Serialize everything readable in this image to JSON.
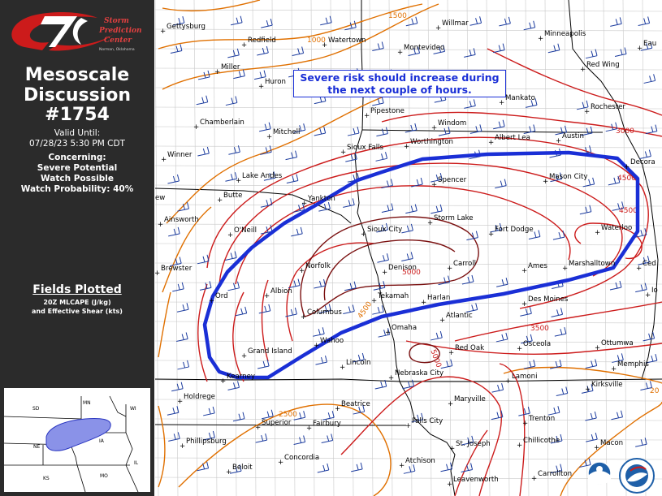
{
  "sidebar": {
    "logo_text": [
      "Storm",
      "Prediction",
      "Center"
    ],
    "logo_subtext": "Norman, Oklahoma",
    "title_line1": "Mesoscale",
    "title_line2": "Discussion",
    "number": "#1754",
    "valid_label": "Valid Until:",
    "valid_time": "07/28/23 5:30 PM CDT",
    "concerning_label": "Concerning:",
    "concerning_line1": "Severe Potential",
    "concerning_line2": "Watch Possible",
    "watch_probability": "Watch Probability: 40%",
    "fields_title": "Fields Plotted",
    "fields_line1": "20Z MLCAPE (J/kg)",
    "fields_line2": "and Effective Shear (kts)"
  },
  "inset_states": [
    "SD",
    "MN",
    "WI",
    "NE",
    "IA",
    "IL",
    "KS",
    "MO"
  ],
  "headline": {
    "line1": "Severe risk should increase during",
    "line2": "the next couple of hours."
  },
  "cities": [
    "Gettysburg",
    "Redfield",
    "Watertown",
    "Willmar",
    "Minneapolis",
    "Eau",
    "Montevideo",
    "Miller",
    "Huron",
    "Red Wing",
    "Mankato",
    "Rochester",
    "Chamberlain",
    "Pipestone",
    "Windom",
    "Mitchell",
    "Sioux Falls",
    "Worthington",
    "Albert Lea",
    "Austin",
    "Winner",
    "Decora",
    "Lake Andes",
    "Spencer",
    "Mason City",
    "Butte",
    "Yankton",
    "ew",
    "Ainsworth",
    "Storm Lake",
    "Waterloo",
    "O'Neill",
    "Sioux City",
    "Fort Dodge",
    "Brewster",
    "Norfolk",
    "Denison",
    "Carroll",
    "Ames",
    "Marshalltown",
    "Ced",
    "Ord",
    "Albion",
    "Tekamah",
    "Harlan",
    "Des Moines",
    "Io",
    "Columbus",
    "Atlantic",
    "Wahoo",
    "Omaha",
    "Osceola",
    "Ottumwa",
    "Grand Island",
    "Lincoln",
    "Red Oak",
    "Kearney",
    "Nebraska City",
    "Lamoni",
    "Memphis",
    "Holdrege",
    "Maryville",
    "Beatrice",
    "Kirksville",
    "Superior",
    "Fairbury",
    "Falls City",
    "Trenton",
    "Chillicothe",
    "Phillipsburg",
    "St. Joseph",
    "Macon",
    "Concordia",
    "Beloit",
    "Atchison",
    "Carrollton",
    "Leavenworth"
  ],
  "cape_contour_labels": [
    "1000",
    "1500",
    "3000",
    "4500",
    "4500",
    "5000",
    "4500",
    "3500",
    "5000",
    "2500",
    "20"
  ],
  "colors": {
    "sidebar_bg": "#2b2b2b",
    "md_outline": "#1a2fd6",
    "cape_low": "#e07000",
    "cape_mid": "#cc1b1b",
    "cape_high": "#7a1010",
    "shear_barbs": "#1b3b9e",
    "inset_highlight": "#8a92e8"
  },
  "icons": [
    "spc-logo-icon",
    "noaa-logo-icon",
    "nws-logo-icon",
    "wind-barb-icon"
  ]
}
